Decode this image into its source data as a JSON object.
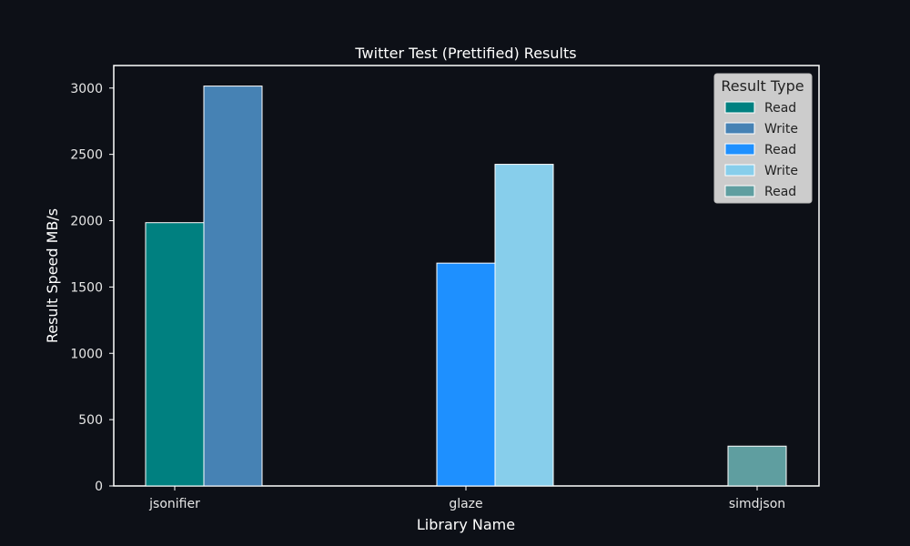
{
  "chart_data": {
    "type": "bar",
    "title": "Twitter Test (Prettified) Results",
    "xlabel": "Library Name",
    "ylabel": "Result Speed MB/s",
    "categories": [
      "jsonifier",
      "glaze",
      "simdjson"
    ],
    "ylim": [
      0,
      3170
    ],
    "yticks": [
      0,
      500,
      1000,
      1500,
      2000,
      2500,
      3000
    ],
    "grid": false,
    "legend_placement": "top-right",
    "legend_title": "Result Type",
    "series": [
      {
        "name": "Read",
        "category": "jsonifier",
        "value": 1985,
        "color": "#008080"
      },
      {
        "name": "Write",
        "category": "jsonifier",
        "value": 3015,
        "color": "#4682b4"
      },
      {
        "name": "Read",
        "category": "glaze",
        "value": 1680,
        "color": "#1e90ff"
      },
      {
        "name": "Write",
        "category": "glaze",
        "value": 2425,
        "color": "#87ceeb"
      },
      {
        "name": "Read",
        "category": "simdjson",
        "value": 300,
        "color": "#5f9ea0"
      }
    ]
  }
}
